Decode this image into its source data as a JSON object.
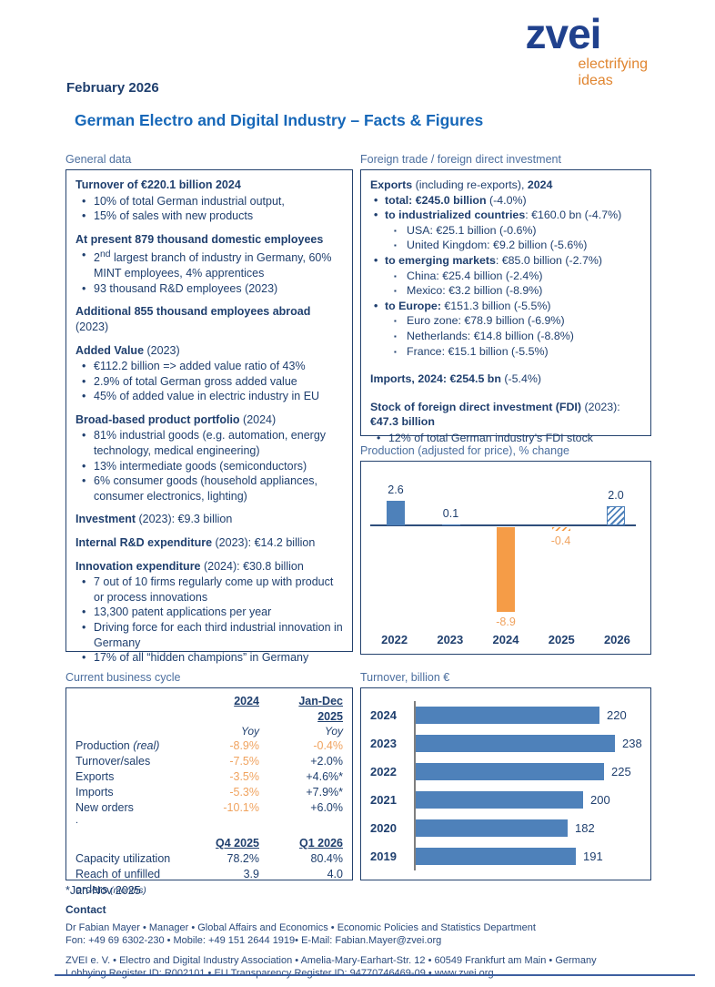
{
  "page": {
    "date": "February 2026",
    "title": "German Electro and Digital Industry – Facts & Figures",
    "footnote": "*Jan-Nov 2025"
  },
  "logo": {
    "wordmark": "zvei",
    "tagline_line1": "electrifying",
    "tagline_line2": "ideas"
  },
  "colors": {
    "navy_text": "#1F3F6E",
    "title_blue": "#1667B8",
    "section_label_blue": "#4C6F9F",
    "logo_blue": "#20418D",
    "logo_orange": "#E08530",
    "bar_blue": "#4E81BA",
    "bar_orange": "#F59C47",
    "negative_orange": "#F0A35F",
    "box_border": "#24426E"
  },
  "general_data": {
    "label": "General data",
    "sections": [
      {
        "heading": "Turnover of €220.1 billion 2024",
        "bullets": [
          "10% of total German industrial output,",
          "15% of sales with new products"
        ]
      },
      {
        "heading": "At present 879 thousand domestic employees",
        "bullets": [
          {
            "pre": "2",
            "sup": "nd",
            "text": " largest branch of industry in Germany, 60% MINT employees, 4% apprentices"
          },
          "93 thousand R&D employees (2023)"
        ]
      },
      {
        "heading": "Additional 855 thousand employees abroad",
        "suffix": "(2023)",
        "suffix_block": true
      },
      {
        "heading": "Added Value",
        "suffix": " (2023)",
        "bullets": [
          "€112.2 billion => added value ratio of 43%",
          "2.9% of total German gross added value",
          "45% of added value in electric industry in EU"
        ]
      },
      {
        "heading": "Broad-based product portfolio",
        "suffix": " (2024)",
        "bullets": [
          "81% industrial goods (e.g. automation, energy technology, medical engineering)",
          "13% intermediate goods (semiconductors)",
          "6% consumer goods (household appliances, consumer electronics, lighting)"
        ]
      },
      {
        "heading": "Investment",
        "suffix": " (2023): €9.3 billion"
      },
      {
        "heading": "Internal R&D expenditure",
        "suffix": " (2023): €14.2 billion"
      },
      {
        "heading": "Innovation expenditure",
        "suffix": " (2024): €30.8 billion",
        "bullets": [
          "7 out of 10 firms regularly come up with product or process innovations",
          "13,300 patent applications per year",
          "Driving force for each third industrial innovation in Germany",
          "17% of all “hidden champions” in Germany"
        ]
      }
    ]
  },
  "foreign_trade": {
    "label": "Foreign trade / foreign direct investment",
    "title_parts": [
      {
        "text": "Exports",
        "bold": true
      },
      {
        "text": " (including re-exports), ",
        "bold": false
      },
      {
        "text": "2024",
        "bold": true
      }
    ],
    "items": [
      {
        "label": "total: €245.0 billion",
        "rest": " (-4.0%)",
        "sub": []
      },
      {
        "label": "to industrialized countries",
        "rest": ": €160.0 bn (-4.7%)",
        "sub": [
          "USA: €25.1 billion (-0.6%)",
          "United Kingdom: €9.2 billion (-5.6%)"
        ]
      },
      {
        "label": "to emerging markets",
        "rest": ": €85.0 billion (-2.7%)",
        "sub": [
          "China: €25.4 billion (-2.4%)",
          "Mexico: €3.2 billion (-8.9%)"
        ]
      },
      {
        "label": "to Europe:",
        "rest": " €151.3 billion (-5.5%)",
        "sub": [
          "Euro zone: €78.9 billion (-6.9%)",
          "Netherlands: €14.8 billion (-8.8%)",
          "France: €15.1 billion (-5.5%)"
        ]
      }
    ],
    "imports": {
      "label": "Imports, 2024: €254.5 bn",
      "rest": " (-5.4%)"
    },
    "fdi": {
      "label": "Stock of foreign direct investment (FDI)",
      "rest": " (2023):",
      "line2": "€47.3 billion",
      "bullet": "12% of total German industry’s FDI stock"
    }
  },
  "chart_data": [
    {
      "type": "bar",
      "title": "Production (adjusted for price), % change",
      "categories": [
        "2022",
        "2023",
        "2024",
        "2025",
        "2026"
      ],
      "values": [
        2.6,
        0.1,
        -8.9,
        -0.4,
        2.0
      ],
      "labels": [
        "2.6",
        "0.1",
        "-8.9",
        "-0.4",
        "2.0"
      ],
      "forecast": [
        false,
        false,
        false,
        true,
        true
      ],
      "ylim": [
        -10,
        4
      ],
      "grid": false,
      "positive_color": "#4E81BA",
      "negative_color": "#F59C47"
    },
    {
      "type": "bar-horizontal",
      "title": "Turnover, billion €",
      "categories": [
        "2024",
        "2023",
        "2022",
        "2021",
        "2020",
        "2019"
      ],
      "values": [
        220,
        238,
        225,
        200,
        182,
        191
      ],
      "xlim": [
        0,
        260
      ],
      "grid": false,
      "bar_color": "#4E81BA"
    }
  ],
  "business_cycle": {
    "label": "Current business cycle",
    "col_headers": [
      [
        "2024"
      ],
      [
        "Jan-Dec",
        "2025"
      ]
    ],
    "unit_row": [
      "Yoy",
      "Yoy"
    ],
    "rows": [
      {
        "label": "Production",
        "label_italic": " (real)",
        "v1": "-8.9%",
        "v1_orange": true,
        "v2": "-0.4%",
        "v2_orange": true
      },
      {
        "label": "Turnover/sales",
        "v1": "-7.5%",
        "v1_orange": true,
        "v2": "+2.0%"
      },
      {
        "label": "Exports",
        "v1": "-3.5%",
        "v1_orange": true,
        "v2": "+4.6%*"
      },
      {
        "label": "Imports",
        "v1": "-5.3%",
        "v1_orange": true,
        "v2": "+7.9%*"
      },
      {
        "label": "New orders",
        "v1": "-10.1%",
        "v1_orange": true,
        "v2": "+6.0%"
      }
    ],
    "stray_dot": ".",
    "headers2": [
      "Q4 2025",
      "Q1 2026"
    ],
    "rows2": [
      {
        "label": "Capacity utilization",
        "v1": "78.2%",
        "v2": "80.4%"
      },
      {
        "label": "Reach of unfilled orders",
        "label_small": " (months)",
        "v1": "3.9",
        "v2": "4.0"
      }
    ]
  },
  "contact": {
    "heading": "Contact",
    "person_lines": [
      "Dr Fabian Mayer • Manager • Global Affairs and Economics • Economic Policies and Statistics Department",
      "Fon: +49 69 6302-230  • Mobile: +49 151 2644 1919• E-Mail: Fabian.Mayer@zvei.org"
    ],
    "org_lines": [
      "ZVEI e. V. • Electro and Digital Industry Association • Amelia-Mary-Earhart-Str. 12 • 60549 Frankfurt am Main • Germany",
      "Lobbying Register ID: R002101 • EU Transparency Register ID: 94770746469-09 • www.zvei.org"
    ]
  }
}
